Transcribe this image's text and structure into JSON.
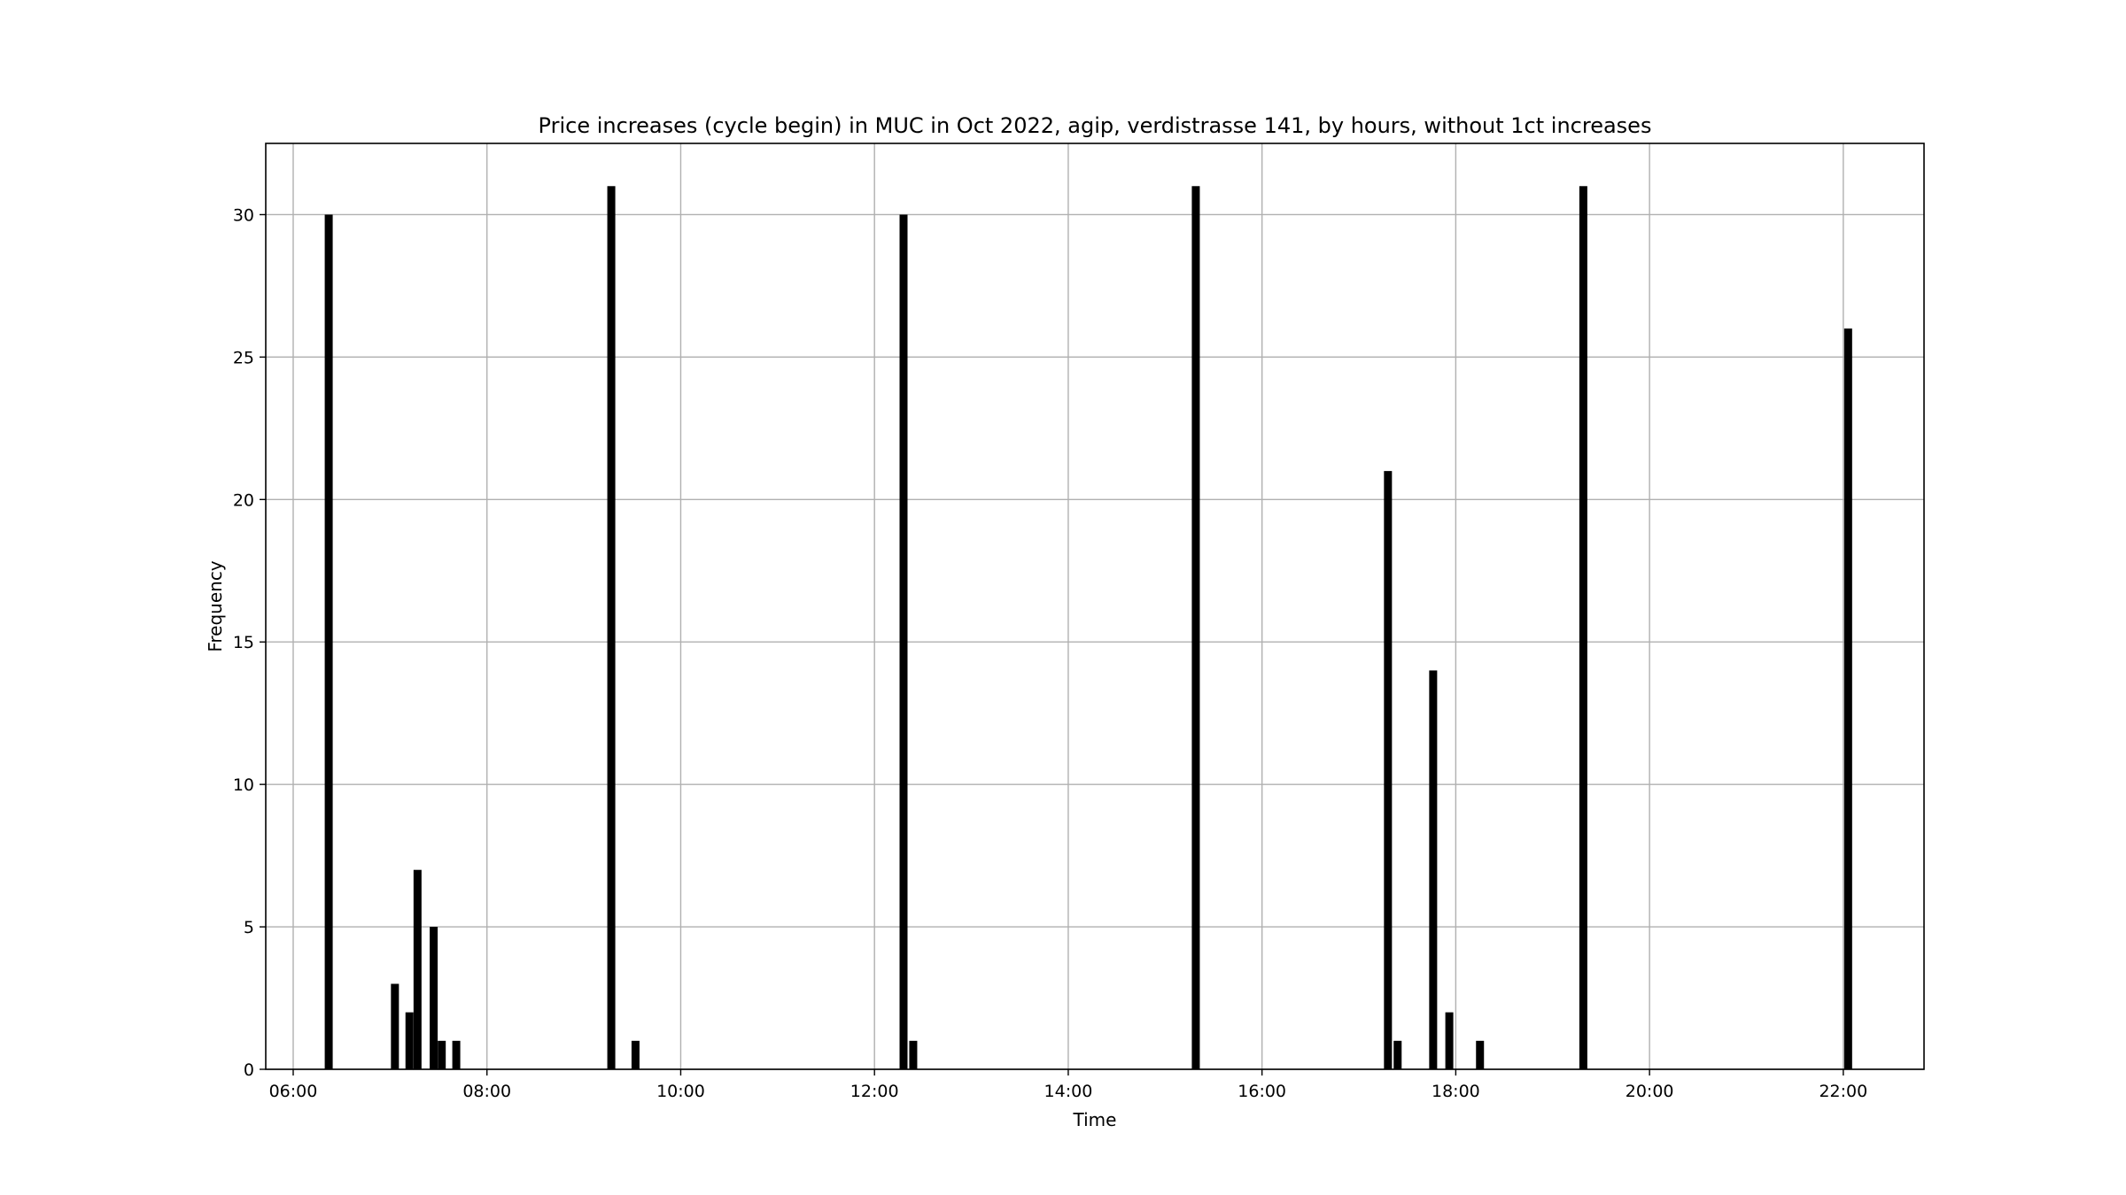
{
  "chart_data": {
    "type": "bar",
    "title": "Price increases (cycle begin) in MUC in Oct 2022, agip, verdistrasse 141, by hours, without 1ct increases",
    "xlabel": "Time",
    "ylabel": "Frequency",
    "x_unit": "hours",
    "xlim": [
      "05:43",
      "22:50"
    ],
    "ylim": [
      0,
      32.5
    ],
    "grid": true,
    "bar_color": "#000000",
    "x_ticks": [
      "06:00",
      "08:00",
      "10:00",
      "12:00",
      "14:00",
      "16:00",
      "18:00",
      "20:00",
      "22:00"
    ],
    "y_ticks": [
      0,
      5,
      10,
      15,
      20,
      25,
      30
    ],
    "bins": [
      {
        "x": "06:22",
        "value": 30
      },
      {
        "x": "07:03",
        "value": 3
      },
      {
        "x": "07:12",
        "value": 2
      },
      {
        "x": "07:17",
        "value": 7
      },
      {
        "x": "07:27",
        "value": 5
      },
      {
        "x": "07:32",
        "value": 1
      },
      {
        "x": "07:41",
        "value": 1
      },
      {
        "x": "09:17",
        "value": 31
      },
      {
        "x": "09:32",
        "value": 1
      },
      {
        "x": "12:18",
        "value": 30
      },
      {
        "x": "12:24",
        "value": 1
      },
      {
        "x": "15:19",
        "value": 31
      },
      {
        "x": "17:18",
        "value": 21
      },
      {
        "x": "17:24",
        "value": 1
      },
      {
        "x": "17:46",
        "value": 14
      },
      {
        "x": "17:56",
        "value": 2
      },
      {
        "x": "18:15",
        "value": 1
      },
      {
        "x": "19:19",
        "value": 31
      },
      {
        "x": "22:03",
        "value": 26
      }
    ]
  }
}
